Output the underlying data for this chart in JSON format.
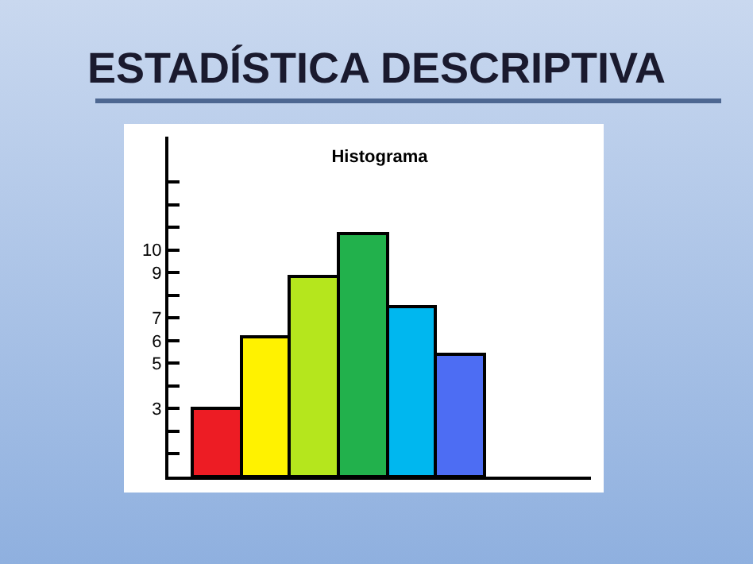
{
  "chart_data": {
    "type": "bar",
    "title": "ESTADÍSTICA DESCRIPTIVA",
    "subtitle": "Histograma",
    "categories": [
      null,
      null,
      null,
      null,
      null,
      null
    ],
    "values": [
      3,
      6.2,
      8.8,
      10.7,
      7.5,
      5.4
    ],
    "colors": [
      "#ed1c24",
      "#fff200",
      "#b5e61d",
      "#22b14c",
      "#00b7ef",
      "#4d6df3"
    ],
    "ylim": [
      0,
      15
    ],
    "yticks": [
      {
        "value": 1,
        "label": null
      },
      {
        "value": 2,
        "label": null
      },
      3,
      {
        "value": 4,
        "label": null
      },
      5,
      6,
      7,
      {
        "value": 8,
        "label": null
      },
      9,
      10,
      {
        "value": 11,
        "label": null
      },
      {
        "value": 12,
        "label": null
      },
      {
        "value": 13,
        "label": null
      }
    ],
    "tick_labels": "y",
    "grid": false,
    "legend": false
  }
}
